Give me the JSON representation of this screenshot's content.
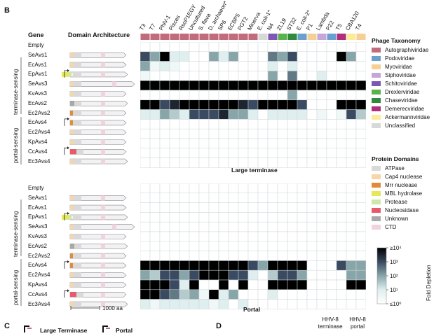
{
  "panels": {
    "B": "B",
    "C": "C",
    "D": "D"
  },
  "headers": {
    "gene": "Gene",
    "domain": "Domain Architecture"
  },
  "phages": [
    "T3",
    "T7",
    "PhiV-1",
    "Pisces",
    "RsoP1EGY",
    "Uncultured",
    "S. flava",
    "D. archaeon*",
    "SP6",
    "ECBP5",
    "PGT2",
    "Minerva",
    "E. coli-1*",
    "N4",
    "ZL19",
    "ST32",
    "E. coli-2*",
    "P1",
    "Lambda",
    "P22",
    "T5",
    "CBA120",
    "T4"
  ],
  "phage_taxonomy_colors": [
    "#c26b7a",
    "#c26b7a",
    "#c26b7a",
    "#c26b7a",
    "#c26b7a",
    "#c26b7a",
    "#c26b7a",
    "#c26b7a",
    "#c26b7a",
    "#c26b7a",
    "#c26b7a",
    "#c26b7a",
    "#d8d8d8",
    "#7e57b5",
    "#5ab34a",
    "#2f8a3e",
    "#6aa0d0",
    "#f6cf95",
    "#c6a6d6",
    "#6aa0d0",
    "#b02e7b",
    "#fbeb9a",
    "#f6cf95"
  ],
  "genes": [
    "Empty",
    "SeAvs1",
    "EcAvs1",
    "EpAvs1",
    "SeAvs3",
    "KvAvs3",
    "EcAvs2",
    "Ec2Avs2",
    "EcAvs4",
    "Ec2Avs4",
    "KpAvs4",
    "CcAvs4",
    "Ec3Avs4"
  ],
  "groups": {
    "terminase": "terminase-sensing",
    "portal": "portal-sensing"
  },
  "grid_titles": {
    "top": "Large terminase",
    "bottom": "Portal"
  },
  "scale_label": "1000 aa",
  "legend": {
    "phage_title": "Phage Taxonomy",
    "phage_items": [
      {
        "label": "Autographiviridae",
        "color": "#c26b7a"
      },
      {
        "label": "Podoviridae",
        "color": "#6aa0d0"
      },
      {
        "label": "Myoviridae",
        "color": "#f6cf95"
      },
      {
        "label": "Siphoviridae",
        "color": "#c6a6d6"
      },
      {
        "label": "Schitoviridae",
        "color": "#7e57b5"
      },
      {
        "label": "Drexlerviridae",
        "color": "#5ab34a"
      },
      {
        "label": "Chaseviridae",
        "color": "#2f8a3e"
      },
      {
        "label": "Demerecviridae",
        "color": "#b02e7b"
      },
      {
        "label": "Ackermannviridae",
        "color": "#fbeb9a"
      },
      {
        "label": "Unclassified",
        "color": "#d8d8d8"
      }
    ],
    "domain_title": "Protein Domains",
    "domain_items": [
      {
        "label": "ATPase",
        "color": "#d9d9d9"
      },
      {
        "label": "Cap4 nuclease",
        "color": "#f7d7a8"
      },
      {
        "label": "Mrr nuclease",
        "color": "#e28a3a"
      },
      {
        "label": "MBL hydrolase",
        "color": "#e5e85a"
      },
      {
        "label": "Protease",
        "color": "#cde8a8"
      },
      {
        "label": "Nucleosidase",
        "color": "#e85a6a"
      },
      {
        "label": "Unknown",
        "color": "#a8a8a8"
      },
      {
        "label": "CTD",
        "color": "#f2d2dc"
      }
    ],
    "colorbar_title": "Fold Depletion",
    "colorbar_ticks": [
      "≥10⁴",
      "10³",
      "10²",
      "10¹",
      "≤10⁰"
    ]
  },
  "bottom_labels": {
    "c_large": "Large Terminase",
    "c_portal": "Portal",
    "d_terminase": "HHV-8 terminase",
    "d_portal": "HHV-8 portal"
  },
  "chart_data": [
    {
      "type": "heatmap",
      "title": "Large terminase",
      "x": [
        "T3",
        "T7",
        "PhiV-1",
        "Pisces",
        "RsoP1EGY",
        "Uncultured",
        "S. flava",
        "D. archaeon*",
        "SP6",
        "ECBP5",
        "PGT2",
        "Minerva",
        "E. coli-1*",
        "N4",
        "ZL19",
        "ST32",
        "E. coli-2*",
        "P1",
        "Lambda",
        "P22",
        "T5",
        "CBA120",
        "T4"
      ],
      "y": [
        "Empty",
        "SeAvs1",
        "EcAvs1",
        "EpAvs1",
        "SeAvs3",
        "KvAvs3",
        "EcAvs2",
        "Ec2Avs2",
        "EcAvs4",
        "Ec2Avs4",
        "KpAvs4",
        "CcAvs4",
        "Ec3Avs4"
      ],
      "value_units": "log10 fold depletion",
      "values": [
        [
          0,
          0,
          0,
          0,
          0,
          0,
          0,
          0,
          0,
          0,
          0,
          0,
          0,
          0,
          0,
          0,
          0,
          0,
          0,
          0,
          0,
          0,
          0
        ],
        [
          3,
          2,
          4,
          1,
          1,
          0,
          0,
          2,
          1,
          2,
          0,
          0,
          0,
          2.5,
          2,
          3,
          0,
          0,
          0,
          0,
          4,
          2,
          0
        ],
        [
          2,
          0.5,
          1,
          0.5,
          0,
          0,
          0,
          0,
          0,
          0,
          0,
          0,
          0,
          1,
          0,
          1,
          0,
          0,
          0,
          0,
          0,
          0,
          0
        ],
        [
          0.5,
          0,
          0,
          0,
          0,
          0,
          0,
          0,
          0,
          0,
          0,
          0,
          0,
          2,
          0,
          2.5,
          0,
          0,
          1,
          0,
          0,
          0,
          0
        ],
        [
          4,
          4,
          4,
          4,
          4,
          4,
          4,
          4,
          4,
          4,
          4,
          4,
          4,
          4,
          4,
          4,
          4,
          4,
          4,
          4,
          4,
          4,
          4
        ],
        [
          0,
          0,
          0,
          0,
          0,
          0,
          0,
          0,
          0,
          0,
          0,
          0,
          0,
          0,
          0,
          2,
          0,
          0,
          0,
          0,
          0,
          0,
          0
        ],
        [
          4,
          4,
          3,
          3.5,
          4,
          4,
          4,
          4,
          4,
          4,
          3.5,
          3,
          4,
          4,
          4,
          4,
          3,
          0,
          0,
          0,
          4,
          4,
          4
        ],
        [
          1,
          1,
          2,
          1.5,
          1,
          3,
          3,
          3,
          3.5,
          2,
          2,
          1,
          0,
          1,
          1,
          1,
          1,
          0,
          0.5,
          0,
          0.5,
          3,
          1.5
        ],
        [
          0,
          0,
          0,
          0,
          0,
          0,
          0,
          0,
          0,
          0,
          0,
          0,
          0,
          0,
          0,
          0,
          0,
          0,
          0,
          0,
          0,
          0,
          0
        ],
        [
          0,
          0,
          0,
          0,
          0,
          0,
          0,
          0,
          0,
          0,
          0,
          0,
          0,
          0,
          0,
          0,
          0,
          0,
          0,
          0,
          0,
          0,
          0
        ],
        [
          0,
          0,
          0,
          0,
          0,
          0,
          0,
          0,
          0,
          0,
          0,
          0,
          0,
          0,
          0,
          0,
          0,
          0,
          0,
          0,
          0,
          0,
          0
        ],
        [
          0,
          0,
          0,
          0,
          0,
          0,
          0,
          0,
          0,
          0,
          0,
          0,
          0,
          0,
          0,
          0,
          0,
          0,
          0,
          0,
          0,
          0,
          0
        ],
        [
          0,
          0,
          0,
          0,
          0,
          0,
          0,
          0,
          0,
          0,
          0,
          0,
          0,
          0,
          0,
          0,
          0,
          0,
          0,
          0,
          0,
          0,
          0
        ]
      ],
      "colorbar_range": [
        0,
        4
      ]
    },
    {
      "type": "heatmap",
      "title": "Portal",
      "x": [
        "T3",
        "T7",
        "PhiV-1",
        "Pisces",
        "RsoP1EGY",
        "Uncultured",
        "S. flava",
        "D. archaeon*",
        "SP6",
        "ECBP5",
        "PGT2",
        "Minerva",
        "E. coli-1*",
        "N4",
        "ZL19",
        "ST32",
        "E. coli-2*",
        "P1",
        "Lambda",
        "P22",
        "T5",
        "CBA120",
        "T4"
      ],
      "y": [
        "Empty",
        "SeAvs1",
        "EcAvs1",
        "EpAvs1",
        "SeAvs3",
        "KvAvs3",
        "EcAvs2",
        "Ec2Avs2",
        "EcAvs4",
        "Ec2Avs4",
        "KpAvs4",
        "CcAvs4",
        "Ec3Avs4"
      ],
      "value_units": "log10 fold depletion",
      "values": [
        [
          0,
          0,
          0,
          0,
          0,
          0,
          0,
          0,
          0,
          0,
          0,
          0,
          0,
          0,
          0,
          0,
          0,
          0,
          0,
          0,
          0,
          0,
          0
        ],
        [
          0,
          0,
          0,
          0,
          0,
          0,
          0,
          0,
          0,
          0,
          0,
          0,
          0,
          0,
          0,
          0,
          0,
          0,
          0,
          0,
          0,
          0,
          0
        ],
        [
          0,
          0,
          0,
          0,
          0,
          0,
          0,
          0,
          0,
          0,
          0,
          0,
          0,
          0,
          0,
          0,
          0,
          0,
          0,
          0,
          0,
          0,
          0
        ],
        [
          0,
          0,
          0,
          0,
          0,
          0,
          0,
          0,
          0,
          0,
          0,
          0,
          0,
          0,
          0,
          0,
          0,
          0,
          0,
          0,
          0,
          0,
          0
        ],
        [
          0,
          0,
          0,
          0,
          0,
          0,
          0,
          0,
          0,
          0,
          0,
          0,
          0,
          0,
          0,
          0,
          0,
          0,
          0,
          0,
          0,
          0,
          0
        ],
        [
          0,
          0,
          0,
          0,
          0,
          0,
          0,
          0,
          0,
          0,
          0,
          0,
          0,
          0,
          0,
          0,
          0,
          0,
          0,
          0,
          0,
          0,
          0
        ],
        [
          0,
          0,
          0,
          0,
          0,
          0,
          0,
          0,
          0,
          0,
          0,
          0,
          0,
          0,
          0,
          0,
          0,
          0,
          0,
          0,
          0,
          0,
          0
        ],
        [
          0,
          0,
          0,
          0,
          0,
          0,
          0,
          0,
          0,
          0,
          0,
          0,
          0,
          0,
          0,
          0,
          0,
          0,
          0,
          0,
          0,
          0,
          0
        ],
        [
          4,
          4,
          4,
          4,
          4,
          4,
          4,
          4,
          4,
          4,
          4,
          3,
          2,
          4,
          4,
          4,
          4,
          0,
          0,
          0,
          3,
          2,
          2
        ],
        [
          2,
          1.5,
          3,
          3,
          2,
          3,
          4,
          4,
          4,
          3,
          3,
          1,
          0,
          1.5,
          3,
          3,
          2,
          0,
          0,
          0,
          0,
          2,
          2
        ],
        [
          4,
          4,
          4,
          3,
          1,
          4,
          0,
          0,
          4,
          0,
          4,
          0,
          0,
          4,
          4,
          4,
          4,
          0,
          0,
          0,
          0,
          4,
          4
        ],
        [
          4,
          4,
          3,
          2.5,
          1.5,
          2,
          0.5,
          4,
          1,
          2,
          0,
          0,
          0,
          1,
          0,
          0,
          0,
          0,
          0,
          0,
          0,
          0,
          0
        ],
        [
          1,
          0.5,
          1,
          1,
          1,
          1,
          1,
          0.5,
          1,
          0,
          1,
          0,
          0,
          0,
          0,
          0,
          0,
          0,
          0,
          0,
          0,
          0,
          0
        ]
      ],
      "colorbar_range": [
        0,
        4
      ]
    }
  ]
}
